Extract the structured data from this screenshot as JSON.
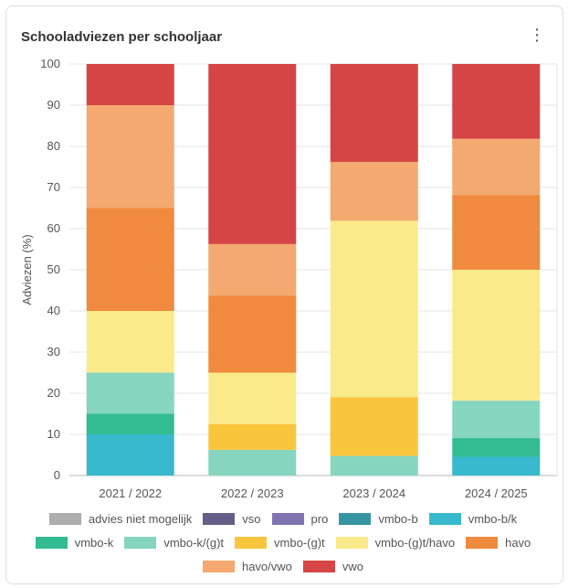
{
  "header": {
    "title": "Schooladviezen per schooljaar",
    "menu_icon": "kebab-menu-icon"
  },
  "chart_data": {
    "type": "bar",
    "stacked": true,
    "title": "Schooladviezen per schooljaar",
    "xlabel": "",
    "ylabel": "Adviezen (%)",
    "ylim": [
      0,
      100
    ],
    "yticks": [
      0,
      10,
      20,
      30,
      40,
      50,
      60,
      70,
      80,
      90,
      100
    ],
    "categories": [
      "2021 / 2022",
      "2022 / 2023",
      "2023 / 2024",
      "2024 / 2025"
    ],
    "legend_position": "bottom",
    "series": [
      {
        "name": "advies niet mogelijk",
        "color": "#adadad",
        "values": [
          0,
          0,
          0,
          0
        ]
      },
      {
        "name": "vso",
        "color": "#655e88",
        "values": [
          0,
          0,
          0,
          0
        ]
      },
      {
        "name": "pro",
        "color": "#8074b0",
        "values": [
          0,
          0,
          0,
          0
        ]
      },
      {
        "name": "vmbo-b",
        "color": "#3795a3",
        "values": [
          0,
          0,
          0,
          0
        ]
      },
      {
        "name": "vmbo-b/k",
        "color": "#38b9cd",
        "values": [
          10,
          0,
          0,
          4.55
        ]
      },
      {
        "name": "vmbo-k",
        "color": "#33bb91",
        "values": [
          5,
          0,
          0,
          4.55
        ]
      },
      {
        "name": "vmbo-k/(g)t",
        "color": "#86d6bf",
        "values": [
          10,
          6.25,
          4.76,
          9.09
        ]
      },
      {
        "name": "vmbo-(g)t",
        "color": "#f9c53d",
        "values": [
          0,
          6.25,
          14.29,
          0
        ]
      },
      {
        "name": "vmbo-(g)t/havo",
        "color": "#fbea8a",
        "values": [
          15,
          12.5,
          42.86,
          31.82
        ]
      },
      {
        "name": "havo",
        "color": "#f08a3e",
        "values": [
          25,
          18.75,
          0,
          18.18
        ]
      },
      {
        "name": "havo/vwo",
        "color": "#f3a96f",
        "values": [
          25,
          12.5,
          14.29,
          13.64
        ]
      },
      {
        "name": "vwo",
        "color": "#d64545",
        "values": [
          10,
          43.75,
          23.81,
          18.18
        ]
      }
    ]
  }
}
